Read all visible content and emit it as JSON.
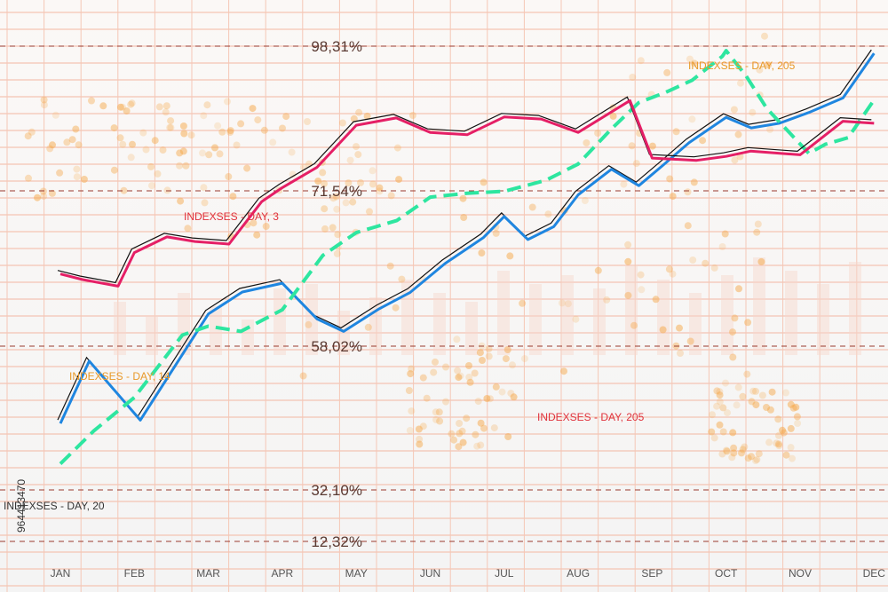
{
  "chart_data": {
    "type": "line",
    "categories": [
      "JAN",
      "FEB",
      "MAR",
      "APR",
      "MAY",
      "JUN",
      "JUL",
      "AUG",
      "SEP",
      "OCT",
      "NOV",
      "DEC"
    ],
    "percent_levels": [
      "98,31%",
      "71,54%",
      "58,02%",
      "32,10%",
      "12,32%"
    ],
    "annotations": [
      {
        "text": "INDEXSES - DAY, 205",
        "color": "#e89a2a"
      },
      {
        "text": "INDEXSES - DAY, 3",
        "color": "#e0323c"
      },
      {
        "text": "INDEXSES - DAY, 14",
        "color": "#e89a2a"
      },
      {
        "text": "INDEXSES - DAY, 205",
        "color": "#e0323c"
      },
      {
        "text": "INDEXSES - DAY, 20",
        "color": "#333333"
      }
    ],
    "side_text": "964413470",
    "series": [
      {
        "style": "solid",
        "color": "#1f86e0",
        "x": [
          0,
          0.39,
          1.08,
          2.0,
          2.46,
          3.0,
          3.47,
          3.83,
          4.31,
          4.73,
          5.2,
          5.72,
          6.0,
          6.32,
          6.67,
          7.0,
          7.45,
          7.82,
          8.14,
          8.5,
          9.0,
          9.34,
          9.72,
          10.12,
          10.58,
          11.0
        ],
        "y": [
          3.5,
          22.5,
          4.5,
          36.8,
          43.5,
          46.2,
          35.3,
          31.5,
          38.4,
          43.4,
          52.2,
          60.1,
          66.5,
          59.5,
          63.4,
          73.1,
          80.9,
          75.9,
          82.0,
          89.0,
          96.7,
          93.5,
          94.9,
          98.2,
          102.6,
          116.2
        ]
      },
      {
        "style": "dashed",
        "color": "#2ee6a0",
        "x": [
          0,
          0.45,
          1.0,
          1.65,
          2.0,
          2.44,
          3.0,
          3.55,
          4.0,
          4.55,
          5.0,
          5.5,
          6.0,
          6.56,
          7.0,
          7.45,
          7.82,
          8.18,
          8.54,
          8.95,
          9.0,
          9.27,
          9.55,
          10.12,
          10.34,
          10.65,
          11.0
        ],
        "y": [
          -8.8,
          1.2,
          11.4,
          30.4,
          33.1,
          31.5,
          38.1,
          54.7,
          61.6,
          65.3,
          72.4,
          73.6,
          74.2,
          77.5,
          82.5,
          93.2,
          101.2,
          104.3,
          108.0,
          115.3,
          117.0,
          109.3,
          99.4,
          85.7,
          88.5,
          90.5,
          102.0
        ]
      },
      {
        "style": "solid",
        "color": "#e51f66",
        "x": [
          0,
          0.3,
          0.78,
          1.0,
          1.44,
          1.82,
          2.28,
          2.72,
          3.0,
          3.47,
          4.0,
          4.54,
          5.0,
          5.5,
          6.0,
          6.5,
          7.0,
          7.7,
          8.0,
          8.6,
          9.0,
          9.33,
          10.0,
          10.58,
          11.0
        ],
        "y": [
          49.0,
          47.3,
          45.3,
          55.5,
          60.3,
          58.9,
          58.1,
          71.0,
          75.3,
          81.5,
          94.3,
          96.5,
          92.1,
          91.4,
          96.8,
          96.2,
          92.1,
          101.8,
          84.3,
          83.6,
          84.8,
          86.4,
          85.3,
          95.5,
          94.9
        ]
      }
    ]
  }
}
